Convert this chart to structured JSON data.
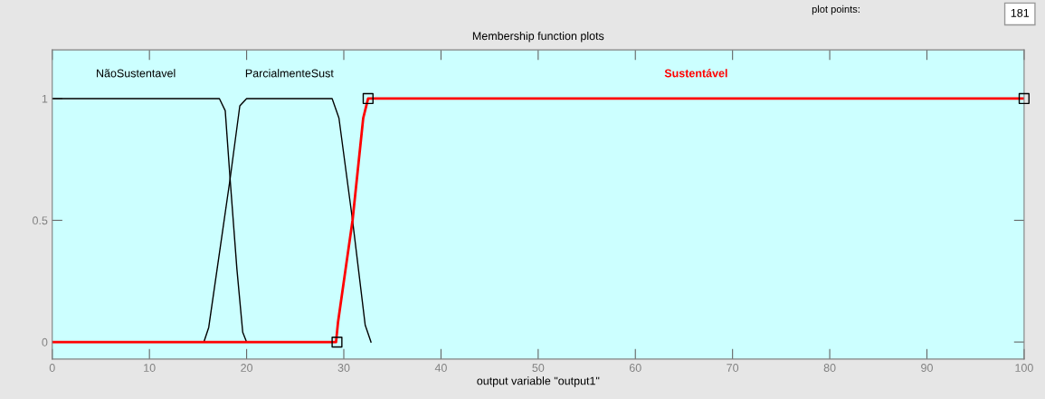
{
  "chart_data": {
    "type": "line",
    "title": "Membership function plots",
    "xlabel": "output variable \"output1\"",
    "xlim": [
      0,
      100
    ],
    "ylim": [
      -0.07,
      1.2
    ],
    "xticks": [
      0,
      10,
      20,
      30,
      40,
      50,
      60,
      70,
      80,
      90,
      100
    ],
    "yticks": [
      0,
      0.5,
      1
    ],
    "grid": false,
    "legend": false,
    "annotations": [
      "plot points:",
      "181"
    ],
    "series": [
      {
        "name": "NãoSustentavel",
        "color": "#000000",
        "x": [
          0,
          17.2,
          17.8,
          18.3,
          19.0,
          19.6,
          20.0
        ],
        "values": [
          1,
          1,
          0.95,
          0.67,
          0.3,
          0.04,
          0
        ]
      },
      {
        "name": "ParcialmenteSust",
        "color": "#000000",
        "x": [
          15.6,
          16.1,
          18.3,
          19.3,
          20.0,
          28.8,
          29.5,
          30.9,
          32.2,
          32.8
        ],
        "values": [
          0,
          0.06,
          0.67,
          0.97,
          1,
          1,
          0.92,
          0.5,
          0.07,
          0
        ]
      },
      {
        "name": "Sustentável",
        "color": "#ff0000",
        "x": [
          0,
          29.2,
          29.4,
          30.9,
          32.0,
          32.5,
          100
        ],
        "values": [
          0,
          0,
          0.08,
          0.5,
          0.92,
          1,
          1
        ]
      },
      {
        "type": "scatter",
        "marker": "square",
        "color": "#000000",
        "x": [
          29.3,
          32.5,
          100
        ],
        "values": [
          0,
          1,
          1
        ]
      }
    ]
  }
}
